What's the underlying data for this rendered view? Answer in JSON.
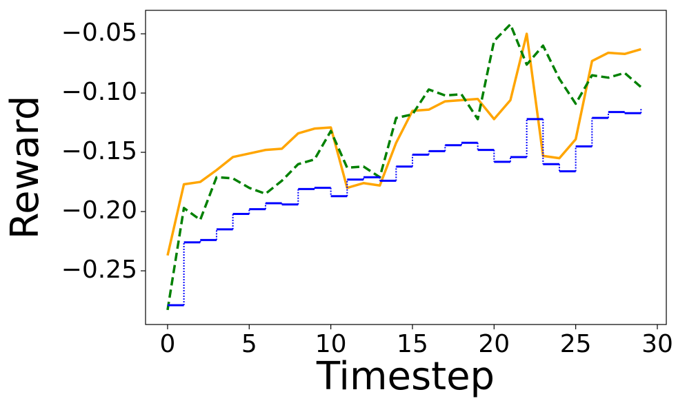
{
  "chart_data": {
    "type": "line",
    "x_label": "Timestep",
    "y_label": "Reward",
    "x": [
      0,
      1,
      2,
      3,
      4,
      5,
      6,
      7,
      8,
      9,
      10,
      11,
      12,
      13,
      14,
      15,
      16,
      17,
      18,
      19,
      20,
      21,
      22,
      23,
      24,
      25,
      26,
      27,
      28,
      29
    ],
    "series": [
      {
        "color": "#ffa500",
        "linestyle": "solid",
        "drawstyle": "default",
        "values": [
          -0.237,
          -0.177,
          -0.175,
          -0.165,
          -0.154,
          -0.151,
          -0.148,
          -0.147,
          -0.134,
          -0.13,
          -0.129,
          -0.18,
          -0.176,
          -0.178,
          -0.142,
          -0.115,
          -0.114,
          -0.107,
          -0.106,
          -0.105,
          -0.122,
          -0.106,
          -0.05,
          -0.153,
          -0.155,
          -0.139,
          -0.073,
          -0.066,
          -0.067,
          -0.063
        ]
      },
      {
        "color": "#008000",
        "linestyle": "dashed",
        "drawstyle": "default",
        "values": [
          -0.283,
          -0.197,
          -0.207,
          -0.171,
          -0.172,
          -0.18,
          -0.185,
          -0.174,
          -0.16,
          -0.156,
          -0.132,
          -0.163,
          -0.162,
          -0.171,
          -0.121,
          -0.118,
          -0.097,
          -0.102,
          -0.101,
          -0.122,
          -0.056,
          -0.042,
          -0.076,
          -0.06,
          -0.088,
          -0.109,
          -0.085,
          -0.087,
          -0.083,
          -0.095
        ]
      },
      {
        "color": "#0000ff",
        "linestyle": "solid",
        "drawstyle": "steps-post",
        "values": [
          -0.279,
          -0.226,
          -0.224,
          -0.215,
          -0.202,
          -0.198,
          -0.193,
          -0.194,
          -0.181,
          -0.18,
          -0.187,
          -0.173,
          -0.171,
          -0.174,
          -0.162,
          -0.152,
          -0.149,
          -0.144,
          -0.142,
          -0.148,
          -0.158,
          -0.154,
          -0.122,
          -0.16,
          -0.166,
          -0.145,
          -0.121,
          -0.116,
          -0.117,
          -0.113
        ]
      }
    ],
    "xlim": [
      -1.35,
      30.55
    ],
    "ylim": [
      -0.2953,
      -0.0302
    ],
    "xticks": [
      0,
      5,
      10,
      15,
      20,
      25,
      30
    ],
    "yticks": [
      {
        "value": -0.25,
        "label": "−0.25"
      },
      {
        "value": -0.2,
        "label": "−0.20"
      },
      {
        "value": -0.15,
        "label": "−0.15"
      },
      {
        "value": -0.1,
        "label": "−0.10"
      },
      {
        "value": -0.05,
        "label": "−0.05"
      }
    ],
    "grid": false
  }
}
